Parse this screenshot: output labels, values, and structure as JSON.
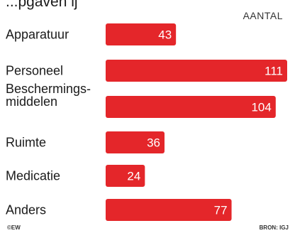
{
  "header": {
    "title": "...pgaven ij",
    "column_header": "AANTAL"
  },
  "footer": {
    "credit": "©EW",
    "source": "BRON: IGJ"
  },
  "colors": {
    "bar": "#e4262a",
    "value_text": "#ffffff"
  },
  "chart_data": {
    "type": "bar",
    "orientation": "horizontal",
    "categories": [
      "Apparatuur",
      "Personeel",
      "Beschermings-\nmiddelen",
      "Ruimte",
      "Medicatie",
      "Anders"
    ],
    "values": [
      43,
      111,
      104,
      36,
      24,
      77
    ],
    "xlim": [
      0,
      111
    ],
    "grid": false,
    "legend": "none"
  }
}
